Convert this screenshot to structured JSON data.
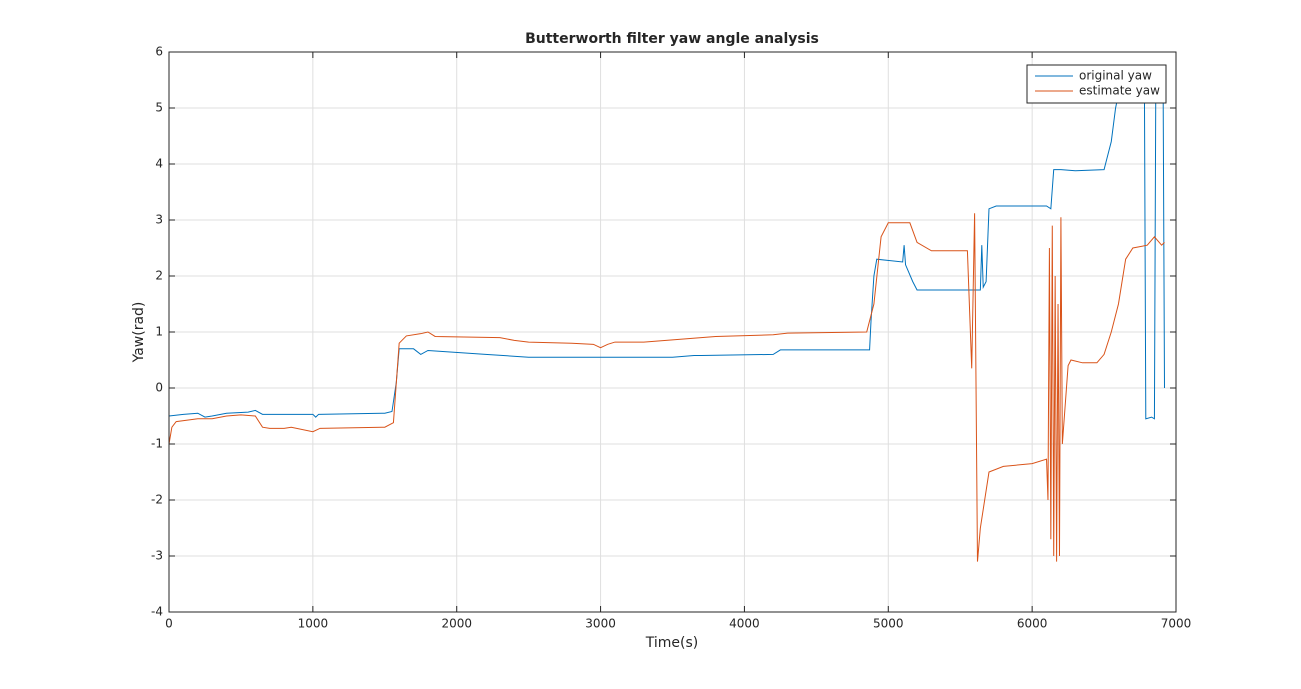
{
  "chart_data": {
    "type": "line",
    "title": "Butterworth filter yaw angle analysis",
    "x_label": "Time(s)",
    "y_label": "Yaw(rad)",
    "xlim": [
      0,
      7000
    ],
    "xticks": [
      0,
      1000,
      2000,
      3000,
      4000,
      5000,
      6000,
      7000
    ],
    "ylim": [
      -4,
      6
    ],
    "yticks": [
      -4,
      -3,
      -2,
      -1,
      0,
      1,
      2,
      3,
      4,
      5,
      6
    ],
    "grid": true,
    "legend": "upper right",
    "series": [
      {
        "name": "original yaw",
        "color": "#0072bd",
        "x": [
          0,
          100,
          200,
          250,
          300,
          400,
          550,
          600,
          650,
          1000,
          1020,
          1040,
          1500,
          1550,
          1580,
          1600,
          1700,
          1750,
          1800,
          2200,
          2500,
          3000,
          3500,
          3650,
          3700,
          4200,
          4250,
          4870,
          4880,
          4900,
          4920,
          5100,
          5110,
          5120,
          5170,
          5200,
          5640,
          5650,
          5660,
          5680,
          5700,
          5750,
          6100,
          6130,
          6150,
          6200,
          6300,
          6500,
          6520,
          6550,
          6580,
          6620,
          6650,
          6780,
          6790,
          6830,
          6850,
          6860,
          6910,
          6920
        ],
        "values": [
          -0.5,
          -0.47,
          -0.45,
          -0.52,
          -0.5,
          -0.45,
          -0.43,
          -0.4,
          -0.47,
          -0.47,
          -0.52,
          -0.47,
          -0.45,
          -0.42,
          0.1,
          0.7,
          0.7,
          0.6,
          0.67,
          0.6,
          0.55,
          0.55,
          0.55,
          0.58,
          0.58,
          0.6,
          0.68,
          0.68,
          1.2,
          2.0,
          2.3,
          2.25,
          2.55,
          2.2,
          1.9,
          1.75,
          1.75,
          2.55,
          1.8,
          1.9,
          3.2,
          3.25,
          3.25,
          3.2,
          3.9,
          3.9,
          3.88,
          3.9,
          4.1,
          4.4,
          5.0,
          5.5,
          5.7,
          5.7,
          -0.55,
          -0.52,
          -0.55,
          5.7,
          5.7,
          0
        ]
      },
      {
        "name": "estimate yaw",
        "color": "#d95319",
        "x": [
          0,
          20,
          50,
          200,
          300,
          400,
          500,
          600,
          650,
          700,
          800,
          850,
          1000,
          1050,
          1500,
          1560,
          1600,
          1650,
          1750,
          1800,
          1850,
          2300,
          2400,
          2500,
          2800,
          2950,
          3000,
          3050,
          3100,
          3300,
          3600,
          3700,
          3800,
          4200,
          4300,
          4850,
          4900,
          4950,
          5000,
          5150,
          5200,
          5300,
          5550,
          5580,
          5600,
          5620,
          5640,
          5700,
          5800,
          6000,
          6100,
          6110,
          6120,
          6130,
          6140,
          6150,
          6160,
          6170,
          6180,
          6190,
          6200,
          6210,
          6250,
          6270,
          6350,
          6450,
          6500,
          6550,
          6600,
          6650,
          6700,
          6800,
          6850,
          6900,
          6920
        ],
        "values": [
          -1.0,
          -0.7,
          -0.6,
          -0.55,
          -0.55,
          -0.5,
          -0.48,
          -0.5,
          -0.7,
          -0.72,
          -0.72,
          -0.7,
          -0.78,
          -0.72,
          -0.7,
          -0.62,
          0.8,
          0.93,
          0.97,
          1.0,
          0.92,
          0.9,
          0.85,
          0.82,
          0.8,
          0.78,
          0.72,
          0.78,
          0.82,
          0.82,
          0.88,
          0.9,
          0.92,
          0.95,
          0.98,
          1.0,
          1.5,
          2.7,
          2.95,
          2.95,
          2.6,
          2.45,
          2.45,
          0.35,
          3.12,
          -3.1,
          -2.5,
          -1.5,
          -1.4,
          -1.35,
          -1.27,
          -2.0,
          2.5,
          -2.7,
          2.9,
          -3.0,
          2.0,
          -3.1,
          1.5,
          -3.0,
          3.05,
          -1.0,
          0.4,
          0.5,
          0.45,
          0.45,
          0.6,
          1.0,
          1.5,
          2.3,
          2.5,
          2.55,
          2.7,
          2.55,
          2.6
        ]
      }
    ]
  }
}
